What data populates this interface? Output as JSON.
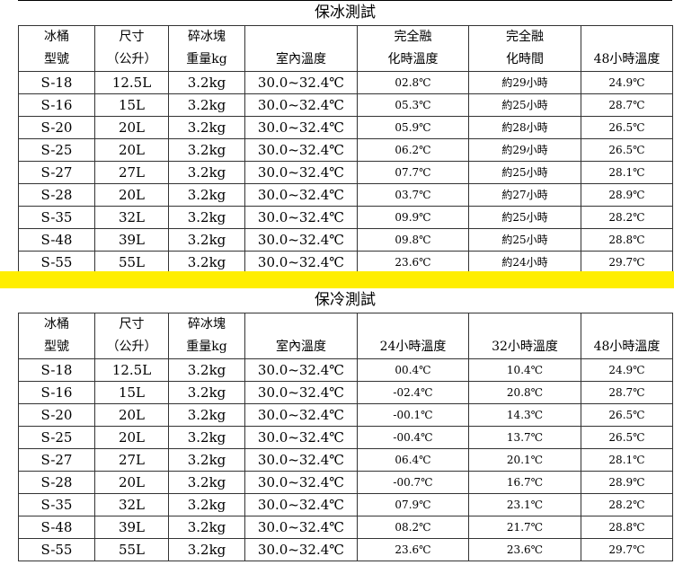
{
  "colors": {
    "band": "#ffee00"
  },
  "ice_test": {
    "title": "保冰測試",
    "headers": [
      [
        "冰桶",
        "型號"
      ],
      [
        "尺寸",
        "（公升）"
      ],
      [
        "碎冰塊",
        "重量kg"
      ],
      [
        "",
        "室內溫度"
      ],
      [
        "完全融",
        "化時溫度"
      ],
      [
        "完全融",
        "化時間"
      ],
      [
        "",
        "48小時溫度"
      ]
    ],
    "rows": [
      [
        "S-18",
        "12.5L",
        "3.2kg",
        "30.0~32.4℃",
        "02.8℃",
        "約29小時",
        "24.9℃"
      ],
      [
        "S-16",
        "15L",
        "3.2kg",
        "30.0~32.4℃",
        "05.3℃",
        "約25小時",
        "28.7℃"
      ],
      [
        "S-20",
        "20L",
        "3.2kg",
        "30.0~32.4℃",
        "05.9℃",
        "約28小時",
        "26.5℃"
      ],
      [
        "S-25",
        "20L",
        "3.2kg",
        "30.0~32.4℃",
        "06.2℃",
        "約29小時",
        "26.5℃"
      ],
      [
        "S-27",
        "27L",
        "3.2kg",
        "30.0~32.4℃",
        "07.7℃",
        "約25小時",
        "28.1℃"
      ],
      [
        "S-28",
        "20L",
        "3.2kg",
        "30.0~32.4℃",
        "03.7℃",
        "約27小時",
        "28.9℃"
      ],
      [
        "S-35",
        "32L",
        "3.2kg",
        "30.0~32.4℃",
        "09.9℃",
        "約25小時",
        "28.2℃"
      ],
      [
        "S-48",
        "39L",
        "3.2kg",
        "30.0~32.4℃",
        "09.8℃",
        "約25小時",
        "28.8℃"
      ],
      [
        "S-55",
        "55L",
        "3.2kg",
        "30.0~32.4℃",
        "23.6℃",
        "約24小時",
        "29.7℃"
      ]
    ]
  },
  "cold_test": {
    "title": "保冷測試",
    "headers": [
      [
        "冰桶",
        "型號"
      ],
      [
        "尺寸",
        "（公升）"
      ],
      [
        "碎冰塊",
        "重量kg"
      ],
      [
        "",
        "室內溫度"
      ],
      [
        "",
        "24小時溫度"
      ],
      [
        "",
        "32小時溫度"
      ],
      [
        "",
        "48小時溫度"
      ]
    ],
    "rows": [
      [
        "S-18",
        "12.5L",
        "3.2kg",
        "30.0~32.4℃",
        "00.4℃",
        "10.4℃",
        "24.9℃"
      ],
      [
        "S-16",
        "15L",
        "3.2kg",
        "30.0~32.4℃",
        "-02.4℃",
        "20.8℃",
        "28.7℃"
      ],
      [
        "S-20",
        "20L",
        "3.2kg",
        "30.0~32.4℃",
        "-00.1℃",
        "14.3℃",
        "26.5℃"
      ],
      [
        "S-25",
        "20L",
        "3.2kg",
        "30.0~32.4℃",
        "-00.4℃",
        "13.7℃",
        "26.5℃"
      ],
      [
        "S-27",
        "27L",
        "3.2kg",
        "30.0~32.4℃",
        "06.4℃",
        "20.1℃",
        "28.1℃"
      ],
      [
        "S-28",
        "20L",
        "3.2kg",
        "30.0~32.4℃",
        "-00.7℃",
        "16.7℃",
        "28.9℃"
      ],
      [
        "S-35",
        "32L",
        "3.2kg",
        "30.0~32.4℃",
        "07.9℃",
        "23.1℃",
        "28.2℃"
      ],
      [
        "S-48",
        "39L",
        "3.2kg",
        "30.0~32.4℃",
        "08.2℃",
        "21.7℃",
        "28.8℃"
      ],
      [
        "S-55",
        "55L",
        "3.2kg",
        "30.0~32.4℃",
        "23.6℃",
        "23.6℃",
        "29.7℃"
      ]
    ]
  }
}
